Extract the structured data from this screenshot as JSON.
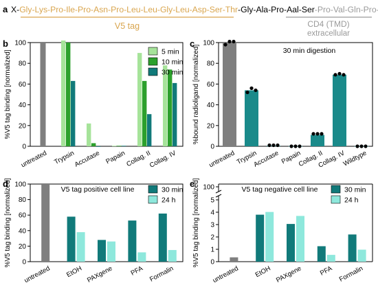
{
  "header": {
    "panel_letter": "a",
    "prefix": "X-",
    "v5_sequence": "Gly-Lys-Pro-Ile-Pro-Asn-Pro-Leu-Leu-Gly-Leu-Asp-Ser-Thr",
    "dash": "-",
    "linker_sequence": "Gly-Ala-Pro-Aal-Ser",
    "cd4_sequence": "-Pro-Val-Gln-Pro-Y",
    "v5_label": "V5 tag",
    "cd4_label": "CD4 (TMD)",
    "extracellular_label": "extracellular",
    "colors": {
      "v5": "#d9a54e",
      "linker": "#000000",
      "cd4": "#9a9a9a"
    }
  },
  "colors": {
    "untreated": "#7f7f7f",
    "light_green": "#a6e39a",
    "mid_green": "#2ca02c",
    "dark_teal": "#117a7a",
    "light_teal": "#8ee8dc",
    "teal": "#1a8a8a"
  },
  "chart_data": [
    {
      "panel": "b",
      "type": "bar",
      "title": "",
      "ylabel": "%V5 tag binding [normalized]",
      "xlabel": "",
      "ylim": [
        0,
        100
      ],
      "yticks": [
        0,
        20,
        40,
        60,
        80,
        100
      ],
      "categories": [
        "untreated",
        "Trypsin",
        "Accutase",
        "Papain",
        "Collag. II",
        "Collag. IV"
      ],
      "untreated_value": 100,
      "series": [
        {
          "name": "5 min",
          "values": [
            null,
            102,
            22,
            0.5,
            90,
            78
          ]
        },
        {
          "name": "10 min",
          "values": [
            null,
            100,
            3,
            0.5,
            63,
            74
          ]
        },
        {
          "name": "30 min",
          "values": [
            null,
            63,
            0,
            0.5,
            31,
            61
          ]
        }
      ],
      "legend_position": "top-right",
      "grid": false
    },
    {
      "panel": "c",
      "type": "bar",
      "title": "30 min digestion",
      "ylabel": "%bound radioligand [normalized]",
      "xlabel": "",
      "ylim": [
        0,
        100
      ],
      "yticks": [
        0,
        20,
        40,
        60,
        80,
        100
      ],
      "categories": [
        "untreated",
        "Trypsin",
        "Accutase",
        "Papain",
        "Collag. II",
        "Collag. IV",
        "Wildtype"
      ],
      "values": [
        100,
        54,
        0.5,
        0.2,
        11,
        69,
        0.2
      ],
      "points": [
        [
          98,
          101,
          101
        ],
        [
          52,
          56,
          54
        ],
        [
          1,
          1,
          1
        ],
        [
          0,
          0,
          0
        ],
        [
          12,
          12,
          12
        ],
        [
          69,
          70,
          69
        ],
        [
          0,
          0,
          0
        ]
      ],
      "legend_position": "none",
      "grid": false
    },
    {
      "panel": "d",
      "type": "bar",
      "title": "V5 tag positive cell line",
      "ylabel": "%V5 tag binding [normalized]",
      "xlabel": "",
      "ylim": [
        0,
        100
      ],
      "yticks": [
        0,
        20,
        40,
        60,
        80,
        100
      ],
      "categories": [
        "untreated",
        "EtOH",
        "PAXgene",
        "PFA",
        "Formalin"
      ],
      "untreated_value": 100,
      "series": [
        {
          "name": "30 min",
          "values": [
            null,
            58,
            28,
            53,
            62
          ]
        },
        {
          "name": "24 h",
          "values": [
            null,
            38,
            26,
            12,
            15
          ]
        }
      ],
      "legend_position": "top-right",
      "grid": false
    },
    {
      "panel": "e",
      "type": "bar",
      "title": "V5 tag negative cell line",
      "ylabel": "%V5 tag binding [normalized]",
      "xlabel": "",
      "ylim": [
        0,
        5
      ],
      "yticks": [
        0,
        1,
        2,
        3,
        4,
        5
      ],
      "axis_break": true,
      "yticks_above_break": [
        100
      ],
      "categories": [
        "untreated",
        "EtOH",
        "PAXgene",
        "PFA",
        "Formalin"
      ],
      "untreated_value": 0.35,
      "series": [
        {
          "name": "30 min",
          "values": [
            null,
            3.8,
            3.05,
            1.25,
            2.2
          ]
        },
        {
          "name": "24 h",
          "values": [
            null,
            4.02,
            3.7,
            0.55,
            0.97
          ]
        }
      ],
      "legend_position": "top-right",
      "grid": false
    }
  ]
}
